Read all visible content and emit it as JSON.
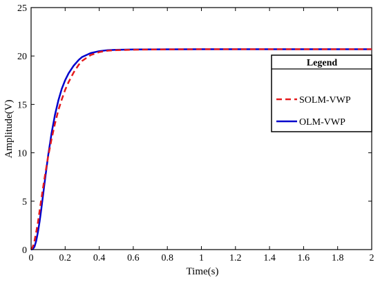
{
  "chart_data": {
    "type": "line",
    "title": "",
    "xlabel": "Time(s)",
    "ylabel": "Amplitude(V)",
    "xlim": [
      0,
      2
    ],
    "ylim": [
      0,
      25
    ],
    "x_ticks": [
      0,
      0.2,
      0.4,
      0.6,
      0.8,
      1,
      1.2,
      1.4,
      1.6,
      1.8,
      2
    ],
    "x_tick_labels": [
      "0",
      "0.2",
      "0.4",
      "0.6",
      "0.8",
      "1",
      "1.2",
      "1.4",
      "1.6",
      "1.8",
      "2"
    ],
    "y_ticks": [
      0,
      5,
      10,
      15,
      20,
      25
    ],
    "y_tick_labels": [
      "0",
      "5",
      "10",
      "15",
      "20",
      "25"
    ],
    "grid": false,
    "legend": {
      "title": "Legend",
      "position": "right"
    },
    "series": [
      {
        "name": "SOLM-VWP",
        "color": "#e41a1c",
        "line_style": "dashed",
        "x": [
          0,
          0.01,
          0.02,
          0.03,
          0.04,
          0.05,
          0.06,
          0.08,
          0.1,
          0.12,
          0.14,
          0.16,
          0.18,
          0.2,
          0.22,
          0.25,
          0.28,
          0.3,
          0.35,
          0.4,
          0.45,
          0.5,
          0.6,
          0.7,
          0.8,
          1.0,
          1.2,
          1.5,
          2.0
        ],
        "y": [
          0,
          0.3,
          0.9,
          1.8,
          2.8,
          4.0,
          5.2,
          7.5,
          9.6,
          11.4,
          13.0,
          14.4,
          15.5,
          16.5,
          17.3,
          18.3,
          19.1,
          19.5,
          20.1,
          20.4,
          20.55,
          20.6,
          20.65,
          20.67,
          20.68,
          20.7,
          20.7,
          20.7,
          20.7
        ]
      },
      {
        "name": "OLM-VWP",
        "color": "#0000cc",
        "line_style": "solid",
        "x": [
          0,
          0.01,
          0.02,
          0.03,
          0.04,
          0.05,
          0.06,
          0.08,
          0.1,
          0.12,
          0.14,
          0.16,
          0.18,
          0.2,
          0.22,
          0.25,
          0.28,
          0.3,
          0.35,
          0.4,
          0.45,
          0.5,
          0.6,
          0.7,
          0.8,
          1.0,
          1.2,
          1.5,
          2.0
        ],
        "y": [
          0,
          0.05,
          0.3,
          0.9,
          1.8,
          2.9,
          4.2,
          7.0,
          9.7,
          12.0,
          13.9,
          15.4,
          16.6,
          17.5,
          18.2,
          19.0,
          19.6,
          19.9,
          20.3,
          20.5,
          20.6,
          20.64,
          20.67,
          20.68,
          20.69,
          20.7,
          20.7,
          20.7,
          20.7
        ]
      }
    ]
  }
}
